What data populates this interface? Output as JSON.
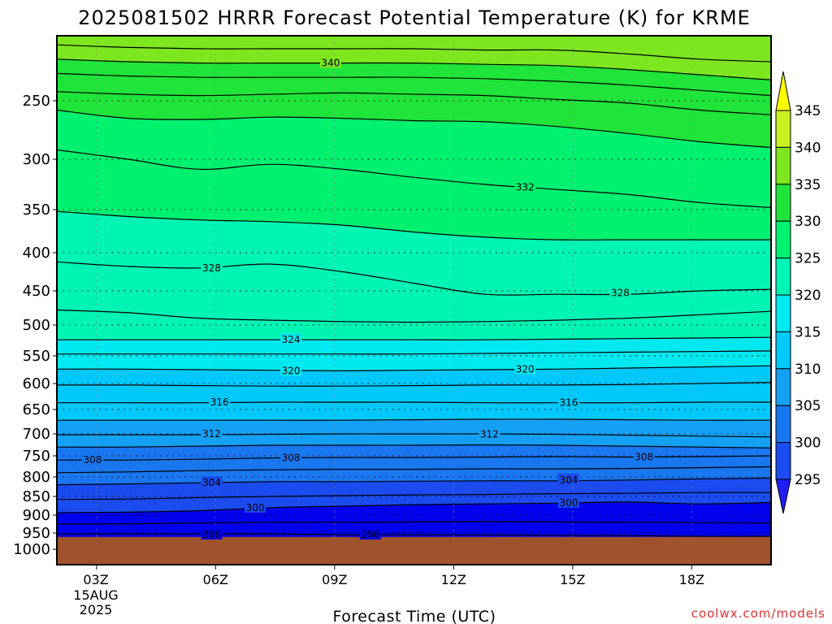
{
  "chart_data": {
    "type": "heatmap",
    "title": "2025081502 HRRR Forecast Potential Temperature (K) for KRME",
    "xlabel": "Forecast Time (UTC)",
    "ylabel": "",
    "credit": "coolwx.com/models",
    "x_start_label": [
      "03Z",
      "15AUG",
      "2025"
    ],
    "x_ticks": [
      {
        "label": "03Z",
        "hour": 3
      },
      {
        "label": "06Z",
        "hour": 6
      },
      {
        "label": "09Z",
        "hour": 9
      },
      {
        "label": "12Z",
        "hour": 12
      },
      {
        "label": "15Z",
        "hour": 15
      },
      {
        "label": "18Z",
        "hour": 18
      }
    ],
    "xlim_hours": [
      2,
      20
    ],
    "y_axis": "pressure (hPa)",
    "y_ticks": [
      250,
      300,
      350,
      400,
      450,
      500,
      550,
      600,
      650,
      700,
      750,
      800,
      850,
      900,
      950,
      1000
    ],
    "ylim_hpa": [
      200,
      1020
    ],
    "surface_pressure_hpa": 962,
    "grid": true,
    "colorbar": {
      "ticks": [
        295,
        300,
        305,
        310,
        315,
        320,
        325,
        330,
        335,
        340,
        345
      ],
      "colors": [
        "#1e1ef2",
        "#0000ee",
        "#1a4cf0",
        "#1977f0",
        "#14a1f5",
        "#00c8fa",
        "#00e9f0",
        "#00f4b4",
        "#00f070",
        "#1fe43a",
        "#7ce61f",
        "#c8f01f",
        "#ffff00"
      ]
    },
    "contour_interval_k": 2,
    "series": [
      {
        "theta": 296,
        "values": [
          953,
          953,
          953,
          953,
          955,
          955,
          956,
          957,
          958,
          960,
          960
        ]
      },
      {
        "theta": 298,
        "values": [
          925,
          924,
          922,
          920,
          920,
          919,
          918,
          919,
          920,
          921,
          922
        ]
      },
      {
        "theta": 300,
        "values": [
          893,
          892,
          888,
          880,
          876,
          872,
          870,
          868,
          865,
          870,
          866
        ]
      },
      {
        "theta": 302,
        "values": [
          858,
          857,
          853,
          850,
          848,
          846,
          845,
          843,
          842,
          840,
          840
        ]
      },
      {
        "theta": 304,
        "values": [
          820,
          818,
          815,
          812,
          812,
          811,
          810,
          810,
          808,
          805,
          803
        ]
      },
      {
        "theta": 306,
        "values": [
          790,
          788,
          785,
          783,
          782,
          782,
          781,
          781,
          780,
          778,
          776
        ]
      },
      {
        "theta": 308,
        "values": [
          760,
          760,
          758,
          755,
          754,
          754,
          753,
          752,
          753,
          752,
          750
        ]
      },
      {
        "theta": 310,
        "values": [
          730,
          730,
          728,
          726,
          726,
          726,
          725,
          726,
          728,
          730,
          732
        ]
      },
      {
        "theta": 312,
        "values": [
          702,
          702,
          702,
          701,
          700,
          700,
          700,
          701,
          703,
          705,
          707
        ]
      },
      {
        "theta": 314,
        "values": [
          672,
          672,
          672,
          672,
          672,
          671,
          670,
          670,
          671,
          672,
          672
        ]
      },
      {
        "theta": 316,
        "values": [
          637,
          637,
          637,
          636,
          636,
          636,
          637,
          637,
          637,
          636,
          636
        ]
      },
      {
        "theta": 318,
        "values": [
          603,
          603,
          604,
          605,
          605,
          604,
          603,
          603,
          602,
          600,
          598
        ]
      },
      {
        "theta": 320,
        "values": [
          574,
          574,
          575,
          576,
          577,
          576,
          575,
          574,
          572,
          570,
          568
        ]
      },
      {
        "theta": 322,
        "values": [
          547,
          547,
          547,
          547,
          547,
          547,
          546,
          545,
          544,
          543,
          542
        ]
      },
      {
        "theta": 324,
        "values": [
          524,
          524,
          524,
          524,
          524,
          524,
          524,
          523,
          522,
          521,
          520
        ]
      },
      {
        "theta": 326,
        "values": [
          478,
          482,
          490,
          493,
          495,
          496,
          495,
          493,
          490,
          485,
          480
        ]
      },
      {
        "theta": 328,
        "values": [
          412,
          418,
          420,
          415,
          425,
          440,
          455,
          455,
          455,
          450,
          448
        ]
      },
      {
        "theta": 330,
        "values": [
          352,
          358,
          362,
          364,
          368,
          376,
          382,
          385,
          385,
          385,
          385
        ]
      },
      {
        "theta": 332,
        "values": [
          292,
          300,
          310,
          305,
          310,
          318,
          325,
          330,
          335,
          343,
          348
        ]
      },
      {
        "theta": 334,
        "values": [
          258,
          265,
          266,
          264,
          265,
          267,
          268,
          272,
          278,
          285,
          290
        ]
      },
      {
        "theta": 336,
        "values": [
          243,
          245,
          246,
          245,
          244,
          245,
          246,
          249,
          252,
          258,
          262
        ]
      },
      {
        "theta": 338,
        "values": [
          229,
          231,
          232,
          232,
          232,
          232,
          233,
          235,
          238,
          242,
          246
        ]
      },
      {
        "theta": 340,
        "values": [
          218,
          220,
          221,
          221,
          221,
          221,
          222,
          223,
          226,
          230,
          234
        ]
      },
      {
        "theta": 342,
        "values": [
          207,
          209,
          210,
          210,
          210,
          210,
          211,
          211,
          214,
          218,
          220
        ]
      }
    ],
    "contour_labels": [
      {
        "text": "340",
        "hour": 8.9,
        "p": 221
      },
      {
        "text": "332",
        "hour": 13.8,
        "p": 328
      },
      {
        "text": "328",
        "hour": 5.9,
        "p": 420
      },
      {
        "text": "328",
        "hour": 16.2,
        "p": 453
      },
      {
        "text": "324",
        "hour": 7.9,
        "p": 524
      },
      {
        "text": "320",
        "hour": 7.9,
        "p": 577
      },
      {
        "text": "320",
        "hour": 13.8,
        "p": 574
      },
      {
        "text": "316",
        "hour": 6.1,
        "p": 636
      },
      {
        "text": "316",
        "hour": 14.9,
        "p": 637
      },
      {
        "text": "312",
        "hour": 5.9,
        "p": 700
      },
      {
        "text": "312",
        "hour": 12.9,
        "p": 701
      },
      {
        "text": "308",
        "hour": 2.9,
        "p": 760
      },
      {
        "text": "308",
        "hour": 7.9,
        "p": 755
      },
      {
        "text": "308",
        "hour": 16.8,
        "p": 753
      },
      {
        "text": "304",
        "hour": 5.9,
        "p": 815
      },
      {
        "text": "304",
        "hour": 14.9,
        "p": 808
      },
      {
        "text": "300",
        "hour": 7.0,
        "p": 880
      },
      {
        "text": "300",
        "hour": 14.9,
        "p": 867
      },
      {
        "text": "296",
        "hour": 5.9,
        "p": 955
      },
      {
        "text": "296",
        "hour": 9.9,
        "p": 955
      }
    ]
  }
}
